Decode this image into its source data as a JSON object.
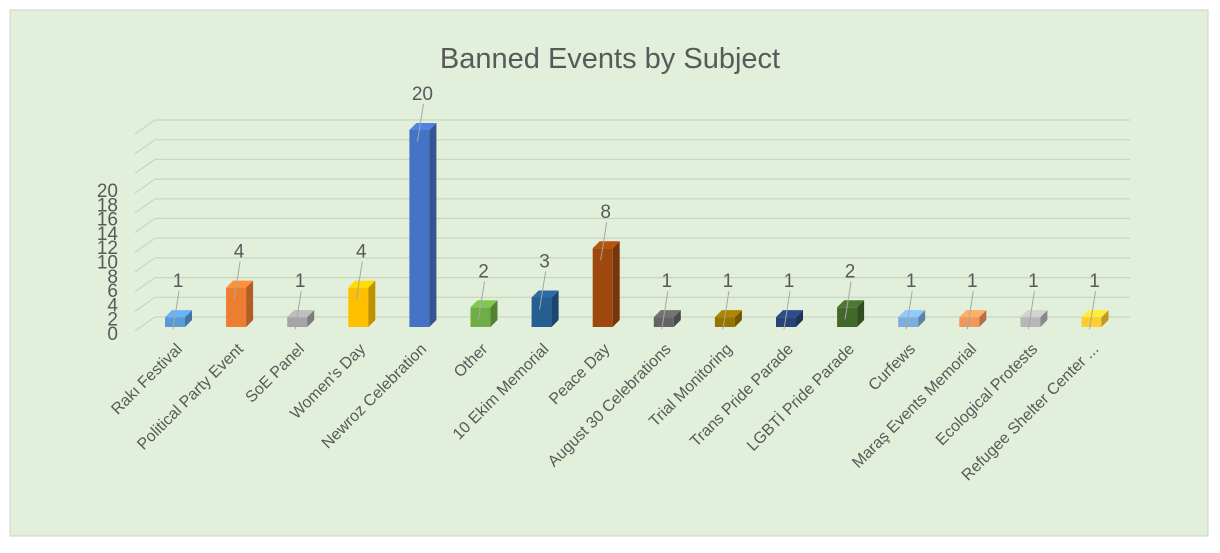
{
  "chart_data": {
    "type": "bar3d",
    "title": "Banned Events by Subject",
    "categories": [
      "Rakı Festival",
      "Political Party Event",
      "SoE Panel",
      "Women's Day",
      "Newroz Celebration",
      "Other",
      "10 Ekim  Memorial",
      "Peace Day",
      "August 30 Celebrations",
      "Trial Monitoring",
      "Trans Pride Parade",
      "LGBTİ Pride Parade",
      "Curfews",
      "Maraş Events Memorial",
      "Ecological Protests",
      "Refugee Shelter Center ..."
    ],
    "values": [
      1,
      4,
      1,
      4,
      20,
      2,
      3,
      8,
      1,
      1,
      1,
      2,
      1,
      1,
      1,
      1
    ],
    "colors": [
      "#5b9bd5",
      "#ed7d31",
      "#a5a5a5",
      "#ffc000",
      "#4472c4",
      "#70ad47",
      "#255e91",
      "#9e480e",
      "#636363",
      "#997300",
      "#264478",
      "#43682b",
      "#7cafdd",
      "#f1975a",
      "#b7b7b7",
      "#ffcd33"
    ],
    "ylim": [
      0,
      20
    ],
    "yticks": [
      0,
      2,
      4,
      6,
      8,
      10,
      12,
      14,
      16,
      18,
      20
    ],
    "grid": true
  }
}
